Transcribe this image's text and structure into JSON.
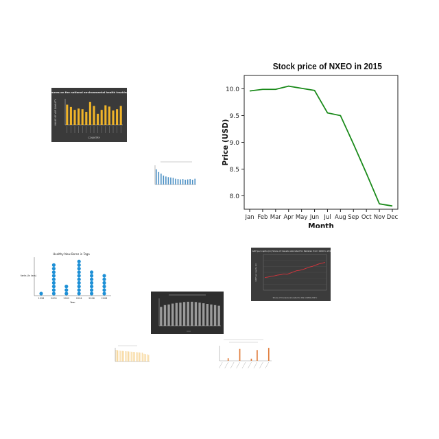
{
  "chart_data": [
    {
      "type": "line",
      "title": "Stock price of NXEO in 2015",
      "xlabel": "Month",
      "ylabel": "Price (USD)",
      "categories": [
        "Jan",
        "Feb",
        "Mar",
        "Apr",
        "May",
        "Jun",
        "Jul",
        "Aug",
        "Sep",
        "Oct",
        "Nov",
        "Dec"
      ],
      "values": [
        9.96,
        9.99,
        9.99,
        10.05,
        10.01,
        9.97,
        9.55,
        9.5,
        8.97,
        8.42,
        7.85,
        7.81
      ],
      "ylim": [
        7.75,
        10.25
      ],
      "yticks": [
        "8.0",
        "8.5",
        "9.0",
        "9.5",
        "10.0"
      ],
      "color": "#1a8a1a",
      "grid": false
    },
    {
      "type": "bar",
      "title": "Air quality Measures on the national environmental health tracking network in 2009",
      "xlabel": "COUNTRY",
      "ylabel": "VALUE OF AIR QUALITY",
      "categories": [
        "c1",
        "c2",
        "c3",
        "c4",
        "c5",
        "c6",
        "c7",
        "c8",
        "c9",
        "c10",
        "c11",
        "c12",
        "c13",
        "c14",
        "c15"
      ],
      "values": [
        62,
        55,
        46,
        50,
        48,
        40,
        70,
        58,
        34,
        46,
        60,
        56,
        44,
        48,
        58
      ],
      "ylim": [
        0,
        80
      ],
      "color": "#f0b429",
      "background": "#3a3a3a"
    },
    {
      "type": "bar",
      "title": "",
      "categories": [
        "1",
        "2",
        "3",
        "4",
        "5",
        "6",
        "7",
        "8",
        "9",
        "10",
        "11",
        "12",
        "13",
        "14",
        "15",
        "16",
        "17"
      ],
      "values": [
        9.5,
        7.8,
        6.8,
        5.6,
        5.0,
        4.6,
        4.4,
        4.2,
        3.6,
        3.4,
        3.2,
        3.4,
        3.0,
        3.2,
        3.4,
        3.0,
        3.6
      ],
      "ylim": [
        0,
        12
      ],
      "color": "#4a8fc4"
    },
    {
      "type": "scatter",
      "title": "Healthy New Borns in Togo",
      "xlabel": "Year",
      "ylabel": "Infants (In lacs)",
      "categories": [
        "1998",
        "2000",
        "2002",
        "2004",
        "2006",
        "2008"
      ],
      "values": [
        1,
        9,
        3,
        10,
        7,
        6
      ],
      "x_positions": [
        1998,
        1999.5,
        2001,
        2002.5,
        2004,
        2005.5
      ],
      "ylim": [
        0,
        10
      ],
      "color": "#1e90d6"
    },
    {
      "type": "line",
      "title": "GDP per capita (in) Share of Canada allocated for Pakistan from 1990 to 2017",
      "xlabel": "Share of Canada allocated to Pak (1990-2017)",
      "ylabel": "GDP per capita (in)",
      "values": [
        9.2,
        9.3,
        9.5,
        9.6,
        9.8,
        9.9,
        10.1,
        10.0,
        10.3,
        10.6,
        10.9,
        11.0,
        11.2,
        11.5,
        11.8,
        12.0,
        12.3,
        12.6,
        12.8,
        13.0
      ],
      "ylim": [
        6,
        15
      ],
      "color": "#d8343c",
      "background": "#3c3c3c"
    },
    {
      "type": "bar",
      "title": "",
      "categories": [
        "1",
        "2",
        "3",
        "4",
        "5",
        "6",
        "7",
        "8",
        "9",
        "10",
        "11",
        "12",
        "13",
        "14",
        "15",
        "16"
      ],
      "values": [
        6.2,
        6.8,
        7.0,
        7.3,
        7.5,
        7.6,
        7.8,
        7.9,
        7.9,
        7.8,
        7.6,
        7.4,
        7.2,
        7.0,
        6.8,
        6.6
      ],
      "ylim": [
        0,
        9
      ],
      "color": "#9a9a9a",
      "background": "#2e2e2e"
    },
    {
      "type": "bar",
      "title": "",
      "categories": [
        "1",
        "2",
        "3",
        "4",
        "5",
        "6",
        "7",
        "8",
        "9",
        "10",
        "11",
        "12",
        "13",
        "14",
        "15",
        "16",
        "17",
        "18",
        "19",
        "20",
        "21",
        "22"
      ],
      "values": [
        8.5,
        8.2,
        8.0,
        7.8,
        7.7,
        7.6,
        7.5,
        7.4,
        7.3,
        7.2,
        7.1,
        7.0,
        6.9,
        6.8,
        6.7,
        6.6,
        6.5,
        6.4,
        5.6,
        5.4,
        5.2,
        4.8
      ],
      "ylim": [
        0,
        10
      ],
      "color": "#f3c46b"
    },
    {
      "type": "bar",
      "title": "",
      "categories": [
        "1",
        "2",
        "3",
        "4",
        "5",
        "6",
        "7",
        "8",
        "9"
      ],
      "values": [
        0,
        1.2,
        0,
        5.5,
        0,
        1.0,
        5.0,
        0,
        6.0
      ],
      "ylim": [
        0,
        7
      ],
      "color": "#e07b39"
    }
  ]
}
